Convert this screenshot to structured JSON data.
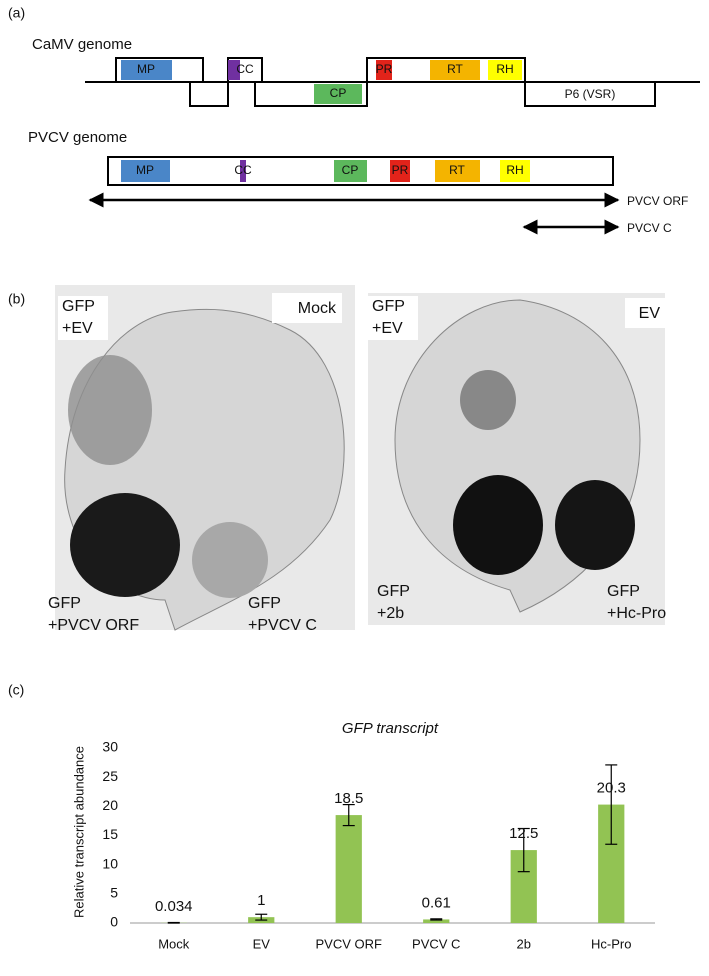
{
  "panel_a": {
    "label": "(a)",
    "camv": {
      "title": "CaMV genome",
      "genes": [
        "MP",
        "CC",
        "CP",
        "PR",
        "RT",
        "RH",
        "P6 (VSR)"
      ]
    },
    "pvcv": {
      "title": "PVCV genome",
      "genes": [
        "MP",
        "CC",
        "CP",
        "PR",
        "RT",
        "RH"
      ],
      "arrows": [
        "PVCV ORF",
        "PVCV C"
      ]
    }
  },
  "panel_b": {
    "label": "(b)",
    "left": {
      "corner": [
        "GFP",
        "+EV"
      ],
      "control": "Mock",
      "bottom_left": [
        "GFP",
        "+PVCV ORF"
      ],
      "bottom_right": [
        "GFP",
        "+PVCV C"
      ]
    },
    "right": {
      "corner": [
        "GFP",
        "+EV"
      ],
      "control": "EV",
      "bottom_left": [
        "GFP",
        "+2b"
      ],
      "bottom_right": [
        "GFP",
        "+Hc-Pro"
      ]
    }
  },
  "panel_c": {
    "label": "(c)"
  },
  "chart_data": {
    "type": "bar",
    "title": "GFP transcript",
    "y_label": "Relative transcript  abundance",
    "categories": [
      "Mock",
      "EV",
      "PVCV ORF",
      "PVCV C",
      "2b",
      "Hc-Pro"
    ],
    "values": [
      0.034,
      1,
      18.5,
      0.61,
      12.5,
      20.3
    ],
    "errors": [
      0.05,
      0.5,
      1.8,
      0.1,
      3.7,
      6.8
    ],
    "color": "#92c353",
    "ylim": [
      0,
      30
    ],
    "yticks": [
      0,
      5,
      10,
      15,
      20,
      25,
      30
    ],
    "grid": false
  }
}
